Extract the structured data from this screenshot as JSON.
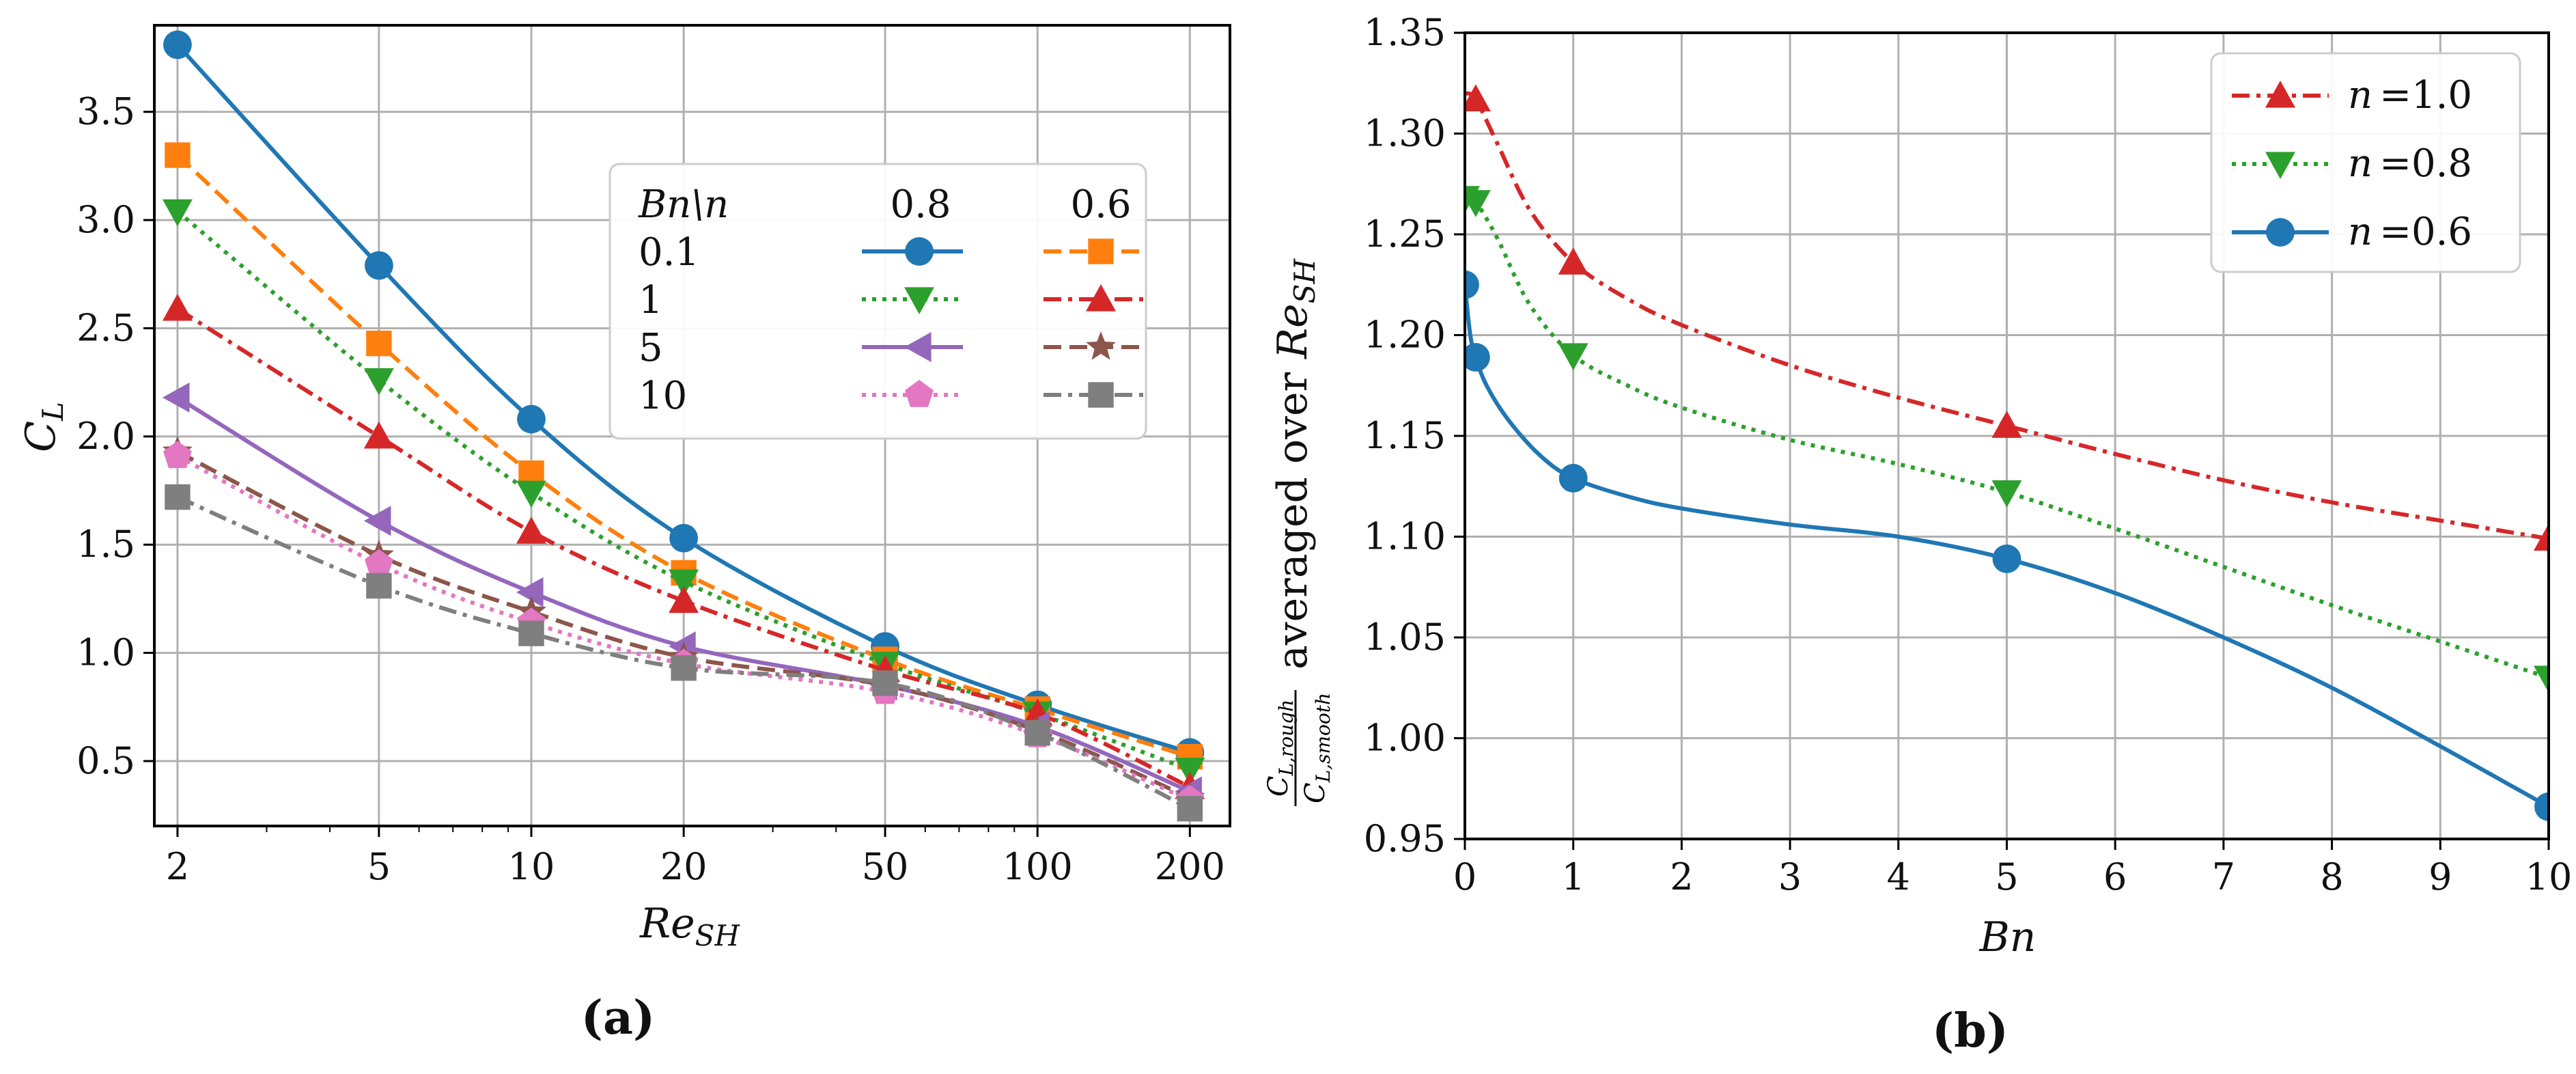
{
  "figure": {
    "panel_a_label": "(a)",
    "panel_b_label": "(b)"
  },
  "chart_data": [
    {
      "type": "line",
      "xscale": "log",
      "xlabel_main": "Re",
      "xlabel_sub": "SH",
      "ylabel_main": "C",
      "ylabel_sub": "L",
      "xlim": [
        1.8,
        240
      ],
      "ylim": [
        0.2,
        3.9
      ],
      "x": [
        2,
        5,
        10,
        20,
        50,
        100,
        200
      ],
      "xticks": [
        2,
        5,
        10,
        20,
        50,
        100,
        200
      ],
      "xtick_labels": [
        "2",
        "5",
        "10",
        "20",
        "50",
        "100",
        "200"
      ],
      "yticks": [
        0.5,
        1.0,
        1.5,
        2.0,
        2.5,
        3.0,
        3.5
      ],
      "ytick_labels": [
        "0.5",
        "1.0",
        "1.5",
        "2.0",
        "2.5",
        "3.0",
        "3.5"
      ],
      "grid": true,
      "legend": {
        "placement": "upper-right",
        "header_row": "Bn\\n",
        "header_cols": [
          "0.8",
          "0.6"
        ],
        "row_labels": [
          "0.1",
          "1",
          "5",
          "10"
        ]
      },
      "series": [
        {
          "name": "Bn=0.1, n=0.8",
          "color": "#1f77b4",
          "dash": "solid",
          "marker": "circle",
          "values": [
            3.81,
            2.79,
            2.08,
            1.53,
            1.03,
            0.76,
            0.54
          ]
        },
        {
          "name": "Bn=0.1, n=0.6",
          "color": "#ff7f0e",
          "dash": "dashed",
          "marker": "square",
          "values": [
            3.3,
            2.43,
            1.83,
            1.37,
            0.97,
            0.74,
            0.52
          ]
        },
        {
          "name": "Bn=1, n=0.8",
          "color": "#2ca02c",
          "dash": "dotted",
          "marker": "triangle-down",
          "values": [
            3.04,
            2.26,
            1.74,
            1.33,
            0.95,
            0.72,
            0.46
          ]
        },
        {
          "name": "Bn=1, n=0.6",
          "color": "#d62728",
          "dash": "dashdot",
          "marker": "triangle-up",
          "values": [
            2.59,
            2.0,
            1.56,
            1.24,
            0.92,
            0.72,
            0.38
          ]
        },
        {
          "name": "Bn=5, n=0.8",
          "color": "#9467bd",
          "dash": "solid",
          "marker": "triangle-left",
          "values": [
            2.18,
            1.61,
            1.28,
            1.03,
            0.85,
            0.66,
            0.36
          ]
        },
        {
          "name": "Bn=5, n=0.6",
          "color": "#8c564b",
          "dash": "dashed",
          "marker": "star",
          "values": [
            1.93,
            1.45,
            1.19,
            0.98,
            0.85,
            0.64,
            0.33
          ]
        },
        {
          "name": "Bn=10, n=0.8",
          "color": "#e377c2",
          "dash": "dotted",
          "marker": "pentagon",
          "values": [
            1.91,
            1.41,
            1.14,
            0.95,
            0.82,
            0.62,
            0.32
          ]
        },
        {
          "name": "Bn=10, n=0.6",
          "color": "#7f7f7f",
          "dash": "dashdot",
          "marker": "square",
          "values": [
            1.72,
            1.31,
            1.09,
            0.93,
            0.86,
            0.63,
            0.28
          ]
        }
      ]
    },
    {
      "type": "line",
      "xscale": "linear",
      "xlabel": "Bn",
      "ylabel_frac_num": "C",
      "ylabel_frac_num_sub": "L,rough",
      "ylabel_frac_den": "C",
      "ylabel_frac_den_sub": "L,smooth",
      "ylabel_text": "averaged over",
      "ylabel_re": "Re",
      "ylabel_re_sub": "SH",
      "xlim": [
        0,
        10
      ],
      "ylim": [
        0.95,
        1.35
      ],
      "xticks": [
        0,
        1,
        2,
        3,
        4,
        5,
        6,
        7,
        8,
        9,
        10
      ],
      "xtick_labels": [
        "0",
        "1",
        "2",
        "3",
        "4",
        "5",
        "6",
        "7",
        "8",
        "9",
        "10"
      ],
      "yticks": [
        0.95,
        1.0,
        1.05,
        1.1,
        1.15,
        1.2,
        1.25,
        1.3,
        1.35
      ],
      "ytick_labels": [
        "0.95",
        "1.00",
        "1.05",
        "1.10",
        "1.15",
        "1.20",
        "1.25",
        "1.30",
        "1.35"
      ],
      "grid": true,
      "legend_placement": "upper-right",
      "series": [
        {
          "name": "n =1.0",
          "legend_prefix": "n",
          "legend_value": "=1.0",
          "color": "#d62728",
          "dash": "dashdot",
          "marker": "triangle-up",
          "markers_x": [
            0.1,
            1,
            5,
            10
          ],
          "markers_y": [
            1.317,
            1.236,
            1.155,
            1.099
          ],
          "curve_x": [
            0.0,
            0.1,
            0.3,
            0.6,
            1,
            1.5,
            2,
            3,
            4,
            5,
            6,
            7,
            8,
            9,
            10
          ],
          "curve_y": [
            1.32,
            1.317,
            1.295,
            1.262,
            1.236,
            1.218,
            1.205,
            1.185,
            1.169,
            1.155,
            1.141,
            1.128,
            1.117,
            1.108,
            1.099
          ]
        },
        {
          "name": "n =0.8",
          "legend_prefix": "n",
          "legend_value": "=0.8",
          "color": "#2ca02c",
          "dash": "dotted",
          "marker": "triangle-down",
          "markers_x": [
            0,
            0.1,
            1,
            5,
            10
          ],
          "markers_y": [
            1.268,
            1.266,
            1.19,
            1.122,
            1.03
          ],
          "curve_x": [
            0,
            0.1,
            0.3,
            0.6,
            1,
            1.5,
            2,
            3,
            4,
            5,
            6,
            7,
            8,
            9,
            10
          ],
          "curve_y": [
            1.268,
            1.266,
            1.248,
            1.215,
            1.19,
            1.175,
            1.164,
            1.148,
            1.136,
            1.122,
            1.104,
            1.085,
            1.066,
            1.048,
            1.03
          ]
        },
        {
          "name": "n =0.6",
          "legend_prefix": "n",
          "legend_value": "=0.6",
          "color": "#1f77b4",
          "dash": "solid",
          "marker": "circle",
          "markers_x": [
            0,
            0.1,
            1,
            5,
            10
          ],
          "markers_y": [
            1.225,
            1.189,
            1.129,
            1.089,
            0.966
          ],
          "curve_x": [
            0,
            0.05,
            0.1,
            0.2,
            0.4,
            0.7,
            1,
            1.5,
            2,
            3,
            4,
            5,
            6,
            7,
            8,
            9,
            10
          ],
          "curve_y": [
            1.225,
            1.2,
            1.189,
            1.175,
            1.158,
            1.14,
            1.129,
            1.12,
            1.114,
            1.106,
            1.1,
            1.089,
            1.072,
            1.05,
            1.025,
            0.996,
            0.966
          ]
        }
      ]
    }
  ]
}
